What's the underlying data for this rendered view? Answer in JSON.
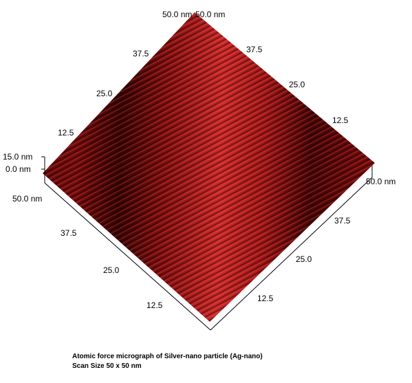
{
  "figure": {
    "top_labels": [
      "50.0 nm",
      "50.0 nm"
    ],
    "back_left_axis": [
      "37.5",
      "25.0",
      "12.5"
    ],
    "back_right_axis": [
      "37.5",
      "25.0",
      "12.5"
    ],
    "z_axis": [
      "15.0 nm",
      "0.0 nm"
    ],
    "front_left_axis": [
      "50.0 nm",
      "37.5",
      "25.0",
      "12.5"
    ],
    "front_right_axis": [
      "50.0 nm",
      "37.5",
      "25.0",
      "12.5"
    ]
  },
  "caption": {
    "lines": [
      "Atomic force micrograph of Silver-nano particle (Ag-nano)",
      "Scan Size 50 x 50 nm"
    ]
  }
}
